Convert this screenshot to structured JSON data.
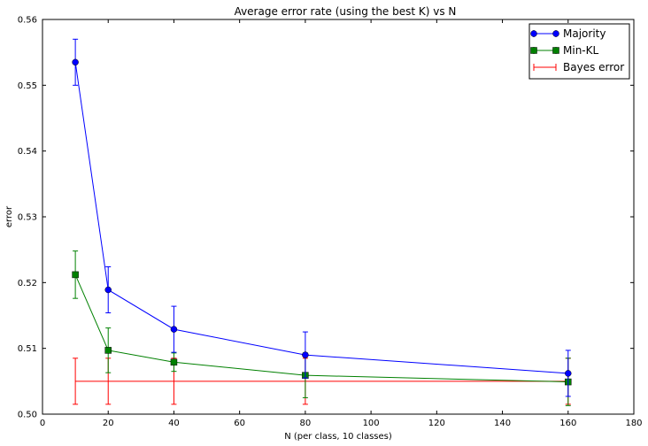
{
  "chart_data": {
    "type": "line",
    "title": "Average error rate (using the best K) vs N",
    "xlabel": "N (per class, 10 classes)",
    "ylabel": "error",
    "xlim": [
      0,
      180
    ],
    "ylim": [
      0.5,
      0.56
    ],
    "xticks": [
      0,
      20,
      40,
      60,
      80,
      100,
      120,
      140,
      160,
      180
    ],
    "yticks": [
      0.5,
      0.51,
      0.52,
      0.53,
      0.54,
      0.55,
      0.56
    ],
    "xtick_labels": [
      "0",
      "20",
      "40",
      "60",
      "80",
      "100",
      "120",
      "140",
      "160",
      "180"
    ],
    "ytick_labels": [
      "0.50",
      "0.51",
      "0.52",
      "0.53",
      "0.54",
      "0.55",
      "0.56"
    ],
    "grid": false,
    "legend_position": "top-right",
    "x": [
      10,
      20,
      40,
      80,
      160
    ],
    "series": [
      {
        "name": "Majority",
        "color": "#0000ff",
        "marker": "circle",
        "values": [
          0.5535,
          0.5189,
          0.5129,
          0.509,
          0.5062
        ],
        "err": [
          0.0035,
          0.0035,
          0.0035,
          0.0035,
          0.0035
        ]
      },
      {
        "name": "Min-KL",
        "color": "#008000",
        "marker": "square",
        "values": [
          0.5212,
          0.5097,
          0.5079,
          0.5059,
          0.5049
        ],
        "err": [
          0.0036,
          0.0034,
          0.0014,
          0.0034,
          0.0036
        ]
      },
      {
        "name": "Bayes error",
        "color": "#ff0000",
        "marker": "none",
        "values": [
          0.505,
          0.505,
          0.505,
          0.505,
          0.505
        ],
        "err": [
          0.0035,
          0.0035,
          0.0035,
          0.0035,
          0.0035
        ]
      }
    ]
  }
}
